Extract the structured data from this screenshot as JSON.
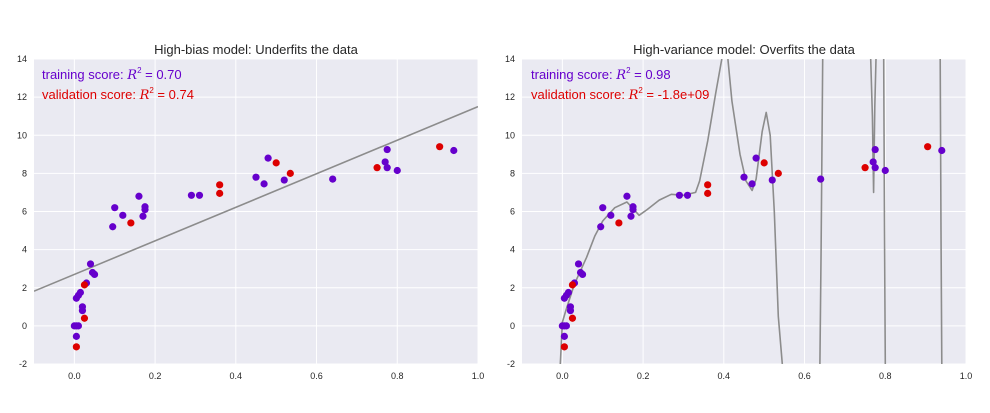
{
  "colors": {
    "background": "#eaeaf2",
    "grid": "#ffffff",
    "training": "#6600cc",
    "validation": "#dd0000",
    "fit_line": "#8c8c8c"
  },
  "chart_data": [
    {
      "type": "scatter",
      "title": "High-bias model: Underfits the data",
      "xlim": [
        -0.1,
        1.0
      ],
      "ylim": [
        -2,
        14
      ],
      "xticks": [
        "0.0",
        "0.2",
        "0.4",
        "0.6",
        "0.8",
        "1.0"
      ],
      "yticks": [
        "-2",
        "0",
        "2",
        "4",
        "6",
        "8",
        "10",
        "12",
        "14"
      ],
      "annotations": {
        "training": {
          "prefix": "training score: ",
          "math": "R",
          "sup": "2",
          "suffix": " = 0.70"
        },
        "validation": {
          "prefix": "validation score: ",
          "math": "R",
          "sup": "2",
          "suffix": " = 0.74"
        }
      },
      "fit": {
        "kind": "linear",
        "slope": 8.8,
        "intercept": 2.7
      },
      "series": [
        {
          "name": "training",
          "points": [
            [
              0.005,
              1.45
            ],
            [
              0.01,
              1.6
            ],
            [
              0.0,
              0.0
            ],
            [
              0.005,
              0.0
            ],
            [
              0.01,
              0.0
            ],
            [
              0.005,
              -0.55
            ],
            [
              0.02,
              1.0
            ],
            [
              0.02,
              0.8
            ],
            [
              0.015,
              1.75
            ],
            [
              0.03,
              2.25
            ],
            [
              0.04,
              3.25
            ],
            [
              0.045,
              2.8
            ],
            [
              0.05,
              2.7
            ],
            [
              0.095,
              5.2
            ],
            [
              0.1,
              6.2
            ],
            [
              0.12,
              5.8
            ],
            [
              0.16,
              6.8
            ],
            [
              0.175,
              6.25
            ],
            [
              0.175,
              6.1
            ],
            [
              0.17,
              5.75
            ],
            [
              0.29,
              6.85
            ],
            [
              0.31,
              6.85
            ],
            [
              0.45,
              7.8
            ],
            [
              0.47,
              7.45
            ],
            [
              0.48,
              8.8
            ],
            [
              0.52,
              7.65
            ],
            [
              0.64,
              7.7
            ],
            [
              0.77,
              8.6
            ],
            [
              0.775,
              9.25
            ],
            [
              0.775,
              8.3
            ],
            [
              0.8,
              8.15
            ],
            [
              0.94,
              9.2
            ]
          ]
        },
        {
          "name": "validation",
          "points": [
            [
              0.005,
              -1.1
            ],
            [
              0.025,
              0.4
            ],
            [
              0.025,
              2.15
            ],
            [
              0.14,
              5.4
            ],
            [
              0.36,
              7.4
            ],
            [
              0.36,
              6.95
            ],
            [
              0.5,
              8.55
            ],
            [
              0.535,
              8.0
            ],
            [
              0.75,
              8.3
            ],
            [
              0.905,
              9.4
            ]
          ]
        }
      ]
    },
    {
      "type": "scatter",
      "title": "High-variance model: Overfits the data",
      "xlim": [
        -0.1,
        1.0
      ],
      "ylim": [
        -2,
        14
      ],
      "xticks": [
        "0.0",
        "0.2",
        "0.4",
        "0.6",
        "0.8",
        "1.0"
      ],
      "yticks": [
        "-2",
        "0",
        "2",
        "4",
        "6",
        "8",
        "10",
        "12",
        "14"
      ],
      "annotations": {
        "training": {
          "prefix": "training score: ",
          "math": "R",
          "sup": "2",
          "suffix": " = 0.98"
        },
        "validation": {
          "prefix": "validation score: ",
          "math": "R",
          "sup": "2",
          "suffix": " = -1.8e+09"
        }
      },
      "fit": {
        "kind": "spline",
        "segments": [
          [
            [
              -0.005,
              -2.0
            ],
            [
              0.0,
              0.2
            ],
            [
              0.01,
              0.9
            ],
            [
              0.03,
              2.2
            ],
            [
              0.06,
              3.6
            ],
            [
              0.08,
              4.7
            ],
            [
              0.1,
              5.5
            ],
            [
              0.13,
              6.2
            ],
            [
              0.16,
              6.5
            ],
            [
              0.175,
              6.15
            ],
            [
              0.19,
              5.8
            ],
            [
              0.21,
              6.1
            ],
            [
              0.24,
              6.6
            ],
            [
              0.27,
              6.9
            ],
            [
              0.3,
              6.85
            ],
            [
              0.33,
              7.0
            ],
            [
              0.34,
              7.6
            ],
            [
              0.36,
              9.7
            ],
            [
              0.38,
              12.2
            ],
            [
              0.395,
              14.0
            ]
          ],
          [
            [
              0.41,
              14.0
            ],
            [
              0.42,
              11.8
            ],
            [
              0.44,
              9.0
            ],
            [
              0.455,
              7.6
            ],
            [
              0.47,
              7.1
            ],
            [
              0.48,
              7.7
            ],
            [
              0.495,
              10.2
            ],
            [
              0.505,
              11.2
            ],
            [
              0.515,
              10.0
            ],
            [
              0.525,
              6.0
            ],
            [
              0.535,
              0.5
            ],
            [
              0.545,
              -2.0
            ]
          ],
          [
            [
              0.638,
              -2.0
            ],
            [
              0.641,
              4.0
            ],
            [
              0.643,
              9.0
            ],
            [
              0.645,
              14.0
            ]
          ],
          [
            [
              0.764,
              14.0
            ],
            [
              0.768,
              11.0
            ],
            [
              0.771,
              7.0
            ],
            [
              0.774,
              11.5
            ],
            [
              0.777,
              14.0
            ]
          ],
          [
            [
              0.796,
              14.0
            ],
            [
              0.798,
              5.0
            ],
            [
              0.8,
              -2.0
            ]
          ],
          [
            [
              0.936,
              14.0
            ],
            [
              0.938,
              5.0
            ],
            [
              0.94,
              -2.0
            ]
          ]
        ]
      },
      "series": [
        {
          "name": "training",
          "points": [
            [
              0.005,
              1.45
            ],
            [
              0.01,
              1.6
            ],
            [
              0.0,
              0.0
            ],
            [
              0.005,
              0.0
            ],
            [
              0.01,
              0.0
            ],
            [
              0.005,
              -0.55
            ],
            [
              0.02,
              1.0
            ],
            [
              0.02,
              0.8
            ],
            [
              0.015,
              1.75
            ],
            [
              0.03,
              2.25
            ],
            [
              0.04,
              3.25
            ],
            [
              0.045,
              2.8
            ],
            [
              0.05,
              2.7
            ],
            [
              0.095,
              5.2
            ],
            [
              0.1,
              6.2
            ],
            [
              0.12,
              5.8
            ],
            [
              0.16,
              6.8
            ],
            [
              0.175,
              6.25
            ],
            [
              0.175,
              6.1
            ],
            [
              0.17,
              5.75
            ],
            [
              0.29,
              6.85
            ],
            [
              0.31,
              6.85
            ],
            [
              0.45,
              7.8
            ],
            [
              0.47,
              7.45
            ],
            [
              0.48,
              8.8
            ],
            [
              0.52,
              7.65
            ],
            [
              0.64,
              7.7
            ],
            [
              0.77,
              8.6
            ],
            [
              0.775,
              9.25
            ],
            [
              0.775,
              8.3
            ],
            [
              0.8,
              8.15
            ],
            [
              0.94,
              9.2
            ]
          ]
        },
        {
          "name": "validation",
          "points": [
            [
              0.005,
              -1.1
            ],
            [
              0.025,
              0.4
            ],
            [
              0.025,
              2.15
            ],
            [
              0.14,
              5.4
            ],
            [
              0.36,
              7.4
            ],
            [
              0.36,
              6.95
            ],
            [
              0.5,
              8.55
            ],
            [
              0.535,
              8.0
            ],
            [
              0.75,
              8.3
            ],
            [
              0.905,
              9.4
            ]
          ]
        }
      ]
    }
  ]
}
